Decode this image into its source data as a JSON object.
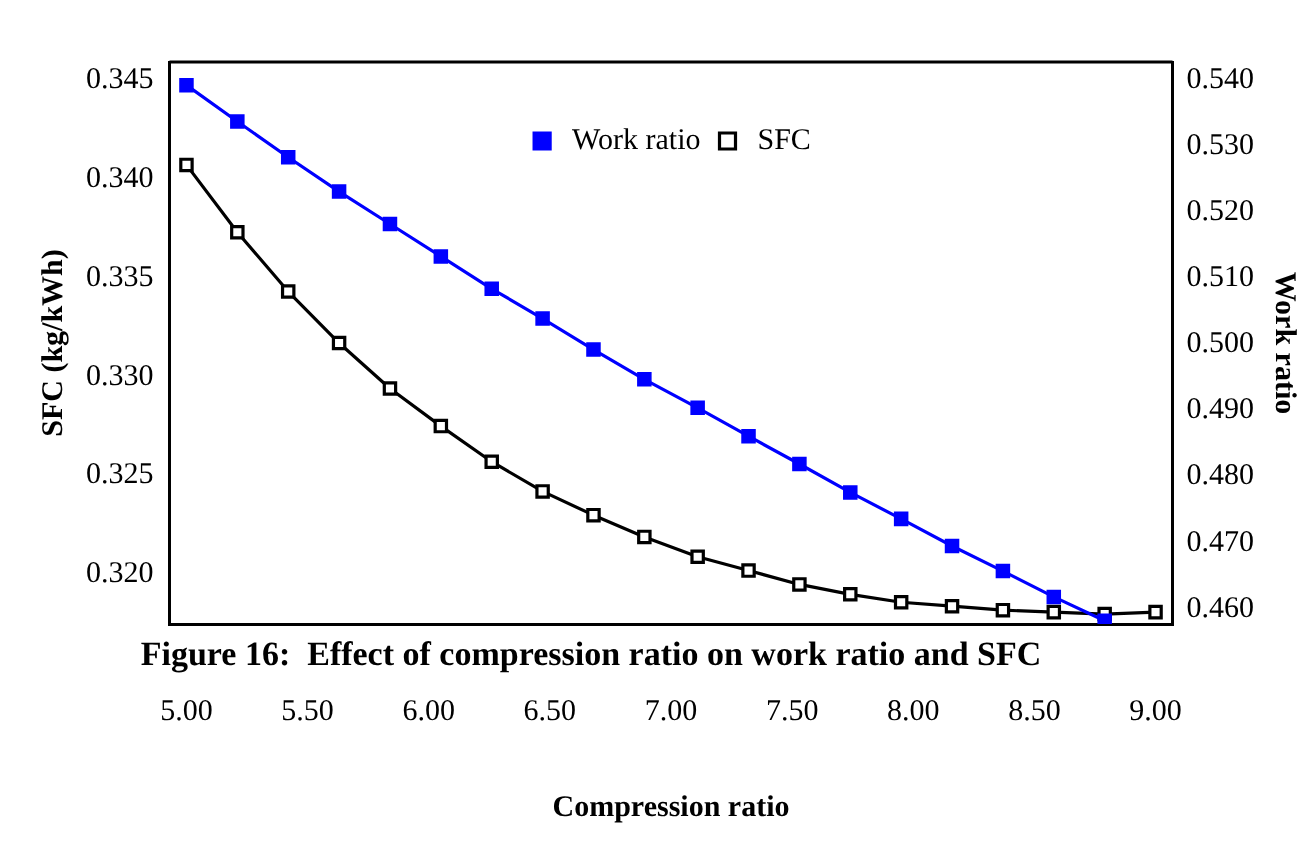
{
  "chart_data": {
    "type": "line",
    "xlabel": "Compression ratio",
    "ylabel": "SFC (kg/kWh)",
    "y2label": "Work ratio",
    "annotations": [
      "Figure 16:  Effect of compression ratio on work ratio and SFC"
    ],
    "x": [
      5.0,
      5.21,
      5.42,
      5.63,
      5.84,
      6.05,
      6.26,
      6.47,
      6.68,
      6.89,
      7.11,
      7.32,
      7.53,
      7.74,
      7.95,
      8.16,
      8.37,
      8.58,
      8.79,
      9.0
    ],
    "series": [
      {
        "name": "SFC",
        "color": "#000000",
        "values": [
          0.3407,
          0.3373,
          0.3343,
          0.3317,
          0.3294,
          0.3275,
          0.3257,
          0.3242,
          0.323,
          0.3219,
          0.3209,
          0.3202,
          0.3195,
          0.319,
          0.3186,
          0.3184,
          0.3182,
          0.3181,
          0.318,
          0.3181
        ]
      },
      {
        "name": "Work ratio",
        "color": "#0000ff",
        "axis": "y2",
        "values": [
          0.5392,
          0.5337,
          0.5283,
          0.5231,
          0.5182,
          0.5133,
          0.5084,
          0.5039,
          0.4992,
          0.4947,
          0.4904,
          0.4861,
          0.4819,
          0.4776,
          0.4736,
          0.4695,
          0.4657,
          0.4618,
          0.4582,
          null
        ]
      }
    ],
    "xlim": [
      4.93,
      9.07
    ],
    "xticks": [
      {
        "value": 5,
        "label": "5.00"
      },
      {
        "value": 5.5,
        "label": "5.50"
      },
      {
        "value": 6,
        "label": "6.00"
      },
      {
        "value": 6.5,
        "label": "6.50"
      },
      {
        "value": 7,
        "label": "7.00"
      },
      {
        "value": 7.5,
        "label": "7.50"
      },
      {
        "value": 8,
        "label": "8.00"
      },
      {
        "value": 8.5,
        "label": "8.50"
      },
      {
        "value": 9,
        "label": "9.00"
      }
    ],
    "ylim": [
      0.3175,
      0.3459
    ],
    "yticks": [
      {
        "value": 0.32,
        "label": "0.320"
      },
      {
        "value": 0.325,
        "label": "0.325"
      },
      {
        "value": 0.33,
        "label": "0.330"
      },
      {
        "value": 0.335,
        "label": "0.335"
      },
      {
        "value": 0.34,
        "label": "0.340"
      },
      {
        "value": 0.345,
        "label": "0.345"
      }
    ],
    "y2lim": [
      0.4577,
      0.5427
    ],
    "y2ticks": [
      {
        "value": 0.46,
        "label": "0.460"
      },
      {
        "value": 0.47,
        "label": "0.470"
      },
      {
        "value": 0.48,
        "label": "0.480"
      },
      {
        "value": 0.49,
        "label": "0.490"
      },
      {
        "value": 0.5,
        "label": "0.500"
      },
      {
        "value": 0.51,
        "label": "0.510"
      },
      {
        "value": 0.52,
        "label": "0.520"
      },
      {
        "value": 0.53,
        "label": "0.530"
      },
      {
        "value": 0.54,
        "label": "0.540"
      }
    ],
    "grid": false,
    "legend": "top",
    "marker": "square",
    "line_style": "solid"
  }
}
